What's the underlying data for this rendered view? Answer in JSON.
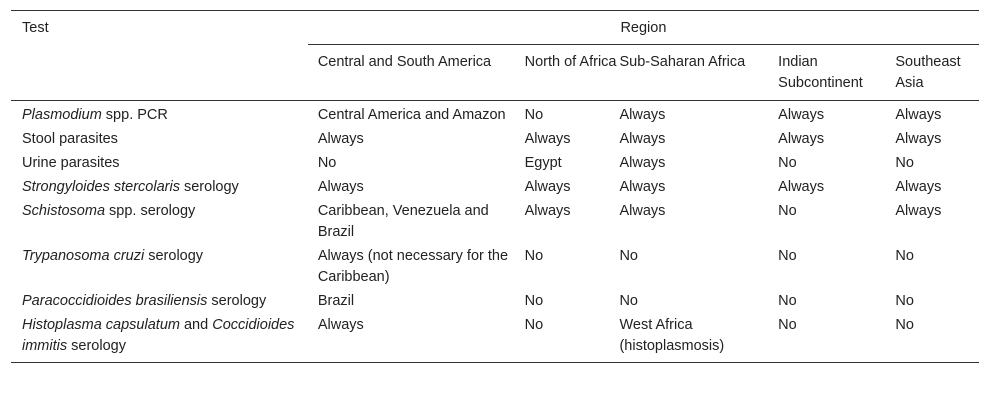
{
  "table": {
    "test_header": "Test",
    "region_header": "Region",
    "regions": [
      "Central and South America",
      "North of Africa",
      "Sub-Saharan Africa",
      "Indian Subcontinent",
      "Southeast Asia"
    ],
    "rows": [
      {
        "test_italic": "Plasmodium",
        "test_rest": " spp. PCR",
        "values": [
          "Central America and Amazon",
          "No",
          "Always",
          "Always",
          "Always"
        ]
      },
      {
        "test_italic": "",
        "test_rest": "Stool parasites",
        "values": [
          "Always",
          "Always",
          "Always",
          "Always",
          "Always"
        ]
      },
      {
        "test_italic": "",
        "test_rest": "Urine parasites",
        "values": [
          "No",
          "Egypt",
          "Always",
          "No",
          "No"
        ]
      },
      {
        "test_italic": "Strongyloides stercolaris",
        "test_rest": " serology",
        "values": [
          "Always",
          "Always",
          "Always",
          "Always",
          "Always"
        ]
      },
      {
        "test_italic": "Schistosoma",
        "test_rest": " spp. serology",
        "values": [
          "Caribbean, Venezuela and Brazil",
          "Always",
          "Always",
          "No",
          "Always"
        ]
      },
      {
        "test_italic": "Trypanosoma cruzi",
        "test_rest": " serology",
        "values": [
          "Always (not necessary for the Caribbean)",
          "No",
          "No",
          "No",
          "No"
        ]
      },
      {
        "test_italic": "Paracoccidioides brasiliensis",
        "test_rest": " serology",
        "values": [
          "Brazil",
          "No",
          "No",
          "No",
          "No"
        ]
      },
      {
        "test_italic": "Histoplasma capsulatum",
        "test_rest": " and ",
        "test_italic2": "Coccidioides immitis",
        "test_rest2": " serology",
        "values": [
          "Always",
          "No",
          "West Africa (histoplasmosis)",
          "No",
          "No"
        ]
      }
    ]
  }
}
